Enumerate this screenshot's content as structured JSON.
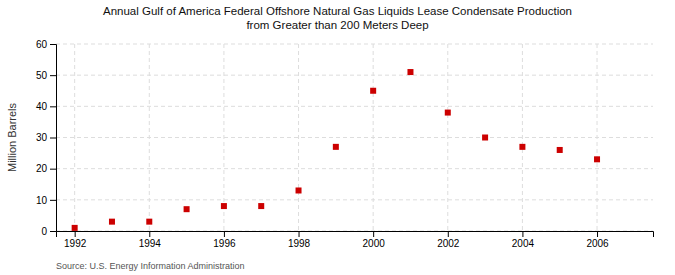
{
  "chart_data": {
    "type": "scatter",
    "title": "Annual Gulf of America Federal Offshore Natural Gas Liquids Lease Condensate Production\nfrom Greater than 200 Meters Deep",
    "y_label": "Million Barrels",
    "source": "Source: U.S. Energy Information Administration",
    "x": [
      1992,
      1993,
      1994,
      1995,
      1996,
      1997,
      1998,
      1999,
      2000,
      2001,
      2002,
      2003,
      2004,
      2005,
      2006
    ],
    "values": [
      1,
      3,
      3,
      7,
      8,
      8,
      13,
      27,
      45,
      51,
      38,
      30,
      27,
      26,
      23
    ],
    "color": "#cc0000",
    "marker": "square",
    "xlim": [
      1991.5,
      2007.5
    ],
    "ylim": [
      0,
      60
    ],
    "xticks": [
      1992,
      1994,
      1996,
      1998,
      2000,
      2002,
      2004,
      2006
    ],
    "yticks": [
      0,
      10,
      20,
      30,
      40,
      50,
      60
    ],
    "grid": true
  }
}
